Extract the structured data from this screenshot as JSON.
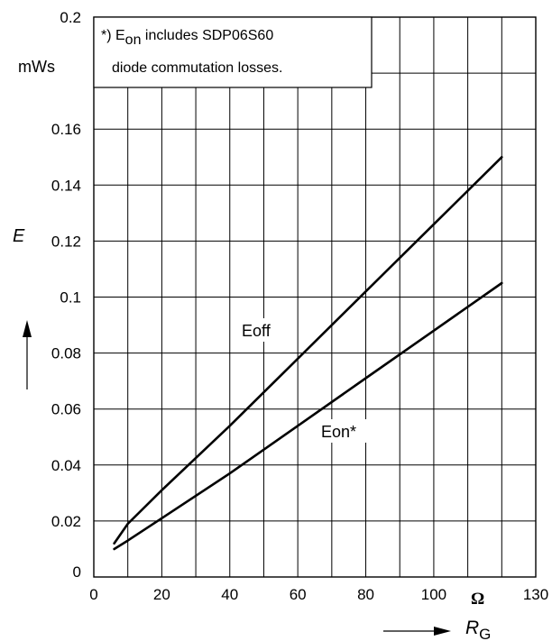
{
  "chart_data": {
    "type": "line",
    "xlabel": "R",
    "xlabel_sub": "G",
    "ylabel": "E",
    "x_unit": "Ω",
    "y_unit": "mWs",
    "xlim": [
      0,
      130
    ],
    "ylim": [
      0,
      0.2
    ],
    "x_ticks": [
      "0",
      "20",
      "40",
      "60",
      "80",
      "100",
      "130"
    ],
    "y_ticks": [
      "0",
      "0.02",
      "0.04",
      "0.06",
      "0.08",
      "0.1",
      "0.12",
      "0.14",
      "0.16",
      "0.2"
    ],
    "grid": true,
    "series": [
      {
        "name": "Eoff",
        "x": [
          6,
          10,
          20,
          40,
          60,
          80,
          100,
          120
        ],
        "y": [
          0.012,
          0.019,
          0.031,
          0.054,
          0.078,
          0.102,
          0.126,
          0.15
        ]
      },
      {
        "name": "Eon*",
        "x": [
          6,
          10,
          20,
          40,
          60,
          80,
          100,
          120
        ],
        "y": [
          0.01,
          0.013,
          0.021,
          0.037,
          0.054,
          0.071,
          0.088,
          0.105
        ]
      }
    ],
    "annotation": {
      "line1_prefix": "*) E",
      "line1_sub": "on",
      "line1_suffix": " includes SDP06S60",
      "line2": "diode commutation losses."
    }
  }
}
